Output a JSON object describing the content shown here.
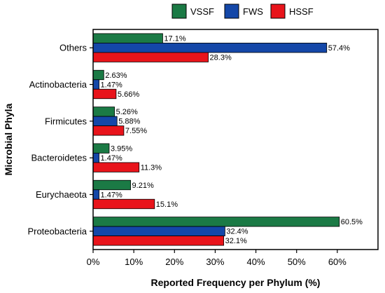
{
  "chart_data": {
    "type": "bar",
    "orientation": "horizontal",
    "categories": [
      "Proteobacteria",
      "Eurychaeota",
      "Bacteroidetes",
      "Firmicutes",
      "Actinobacteria",
      "Others"
    ],
    "series": [
      {
        "name": "VSSF",
        "color": "#1b7a45",
        "values": [
          60.5,
          9.21,
          3.95,
          5.26,
          2.63,
          17.1
        ],
        "labels": [
          "60.5%",
          "9.21%",
          "3.95%",
          "5.26%",
          "2.63%",
          "17.1%"
        ]
      },
      {
        "name": "FWS",
        "color": "#1447a8",
        "values": [
          32.4,
          1.47,
          1.47,
          5.88,
          1.47,
          57.4
        ],
        "labels": [
          "32.4%",
          "1.47%",
          "1.47%",
          "5.88%",
          "1.47%",
          "57.4%"
        ]
      },
      {
        "name": "HSSF",
        "color": "#e8141b",
        "values": [
          32.1,
          15.1,
          11.3,
          7.55,
          5.66,
          28.3
        ],
        "labels": [
          "32.1%",
          "15.1%",
          "11.3%",
          "7.55%",
          "5.66%",
          "28.3%"
        ]
      }
    ],
    "xlabel": "Reported Frequency per Phylum (%)",
    "ylabel": "Microbial Phyla",
    "xlim": [
      0,
      70
    ],
    "xticks": [
      0,
      10,
      20,
      30,
      40,
      50,
      60
    ],
    "xtick_labels": [
      "0%",
      "10%",
      "20%",
      "30%",
      "40%",
      "50%",
      "60%"
    ],
    "grid": false,
    "legend_position": "top"
  }
}
